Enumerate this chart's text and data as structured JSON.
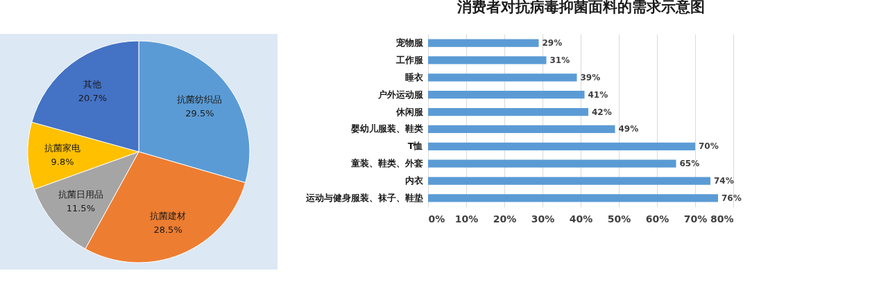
{
  "chart_data": [
    {
      "type": "pie",
      "categories": [
        "抗菌纺织品",
        "抗菌建材",
        "抗菌日用品",
        "抗菌家电",
        "其他"
      ],
      "values": [
        29.5,
        28.5,
        11.5,
        9.8,
        20.7
      ],
      "colors": [
        "#5b9bd5",
        "#ed7d31",
        "#a5a5a5",
        "#ffc000",
        "#4472c4"
      ],
      "value_labels": [
        "29.5%",
        "28.5%",
        "11.5%",
        "9.8%",
        "20.7%"
      ]
    },
    {
      "type": "bar",
      "orientation": "horizontal",
      "title": "消费者对抗病毒抑菌面料的需求示意图",
      "categories": [
        "宠物服",
        "工作服",
        "睡衣",
        "户外运动服",
        "休闲服",
        "婴幼儿服装、鞋类",
        "T恤",
        "童装、鞋类、外套",
        "内衣",
        "运动与健身服装、袜子、鞋垫"
      ],
      "values": [
        29,
        31,
        39,
        41,
        42,
        49,
        70,
        65,
        74,
        76
      ],
      "color": "#5b9bd5",
      "value_labels": [
        "29%",
        "31%",
        "39%",
        "41%",
        "42%",
        "49%",
        "70%",
        "65%",
        "74%",
        "76%"
      ],
      "xlim": [
        0,
        80
      ],
      "xticks": [
        {
          "value": 0,
          "label": "0%"
        },
        {
          "value": 10,
          "label": "10%"
        },
        {
          "value": 20,
          "label": "20%"
        },
        {
          "value": 30,
          "label": "30%"
        },
        {
          "value": 40,
          "label": "40%"
        },
        {
          "value": 50,
          "label": "50%"
        },
        {
          "value": 60,
          "label": "60%"
        },
        {
          "value": 70,
          "label": "70%"
        },
        {
          "value": 80,
          "label": "80%"
        }
      ],
      "grid": "x"
    }
  ]
}
